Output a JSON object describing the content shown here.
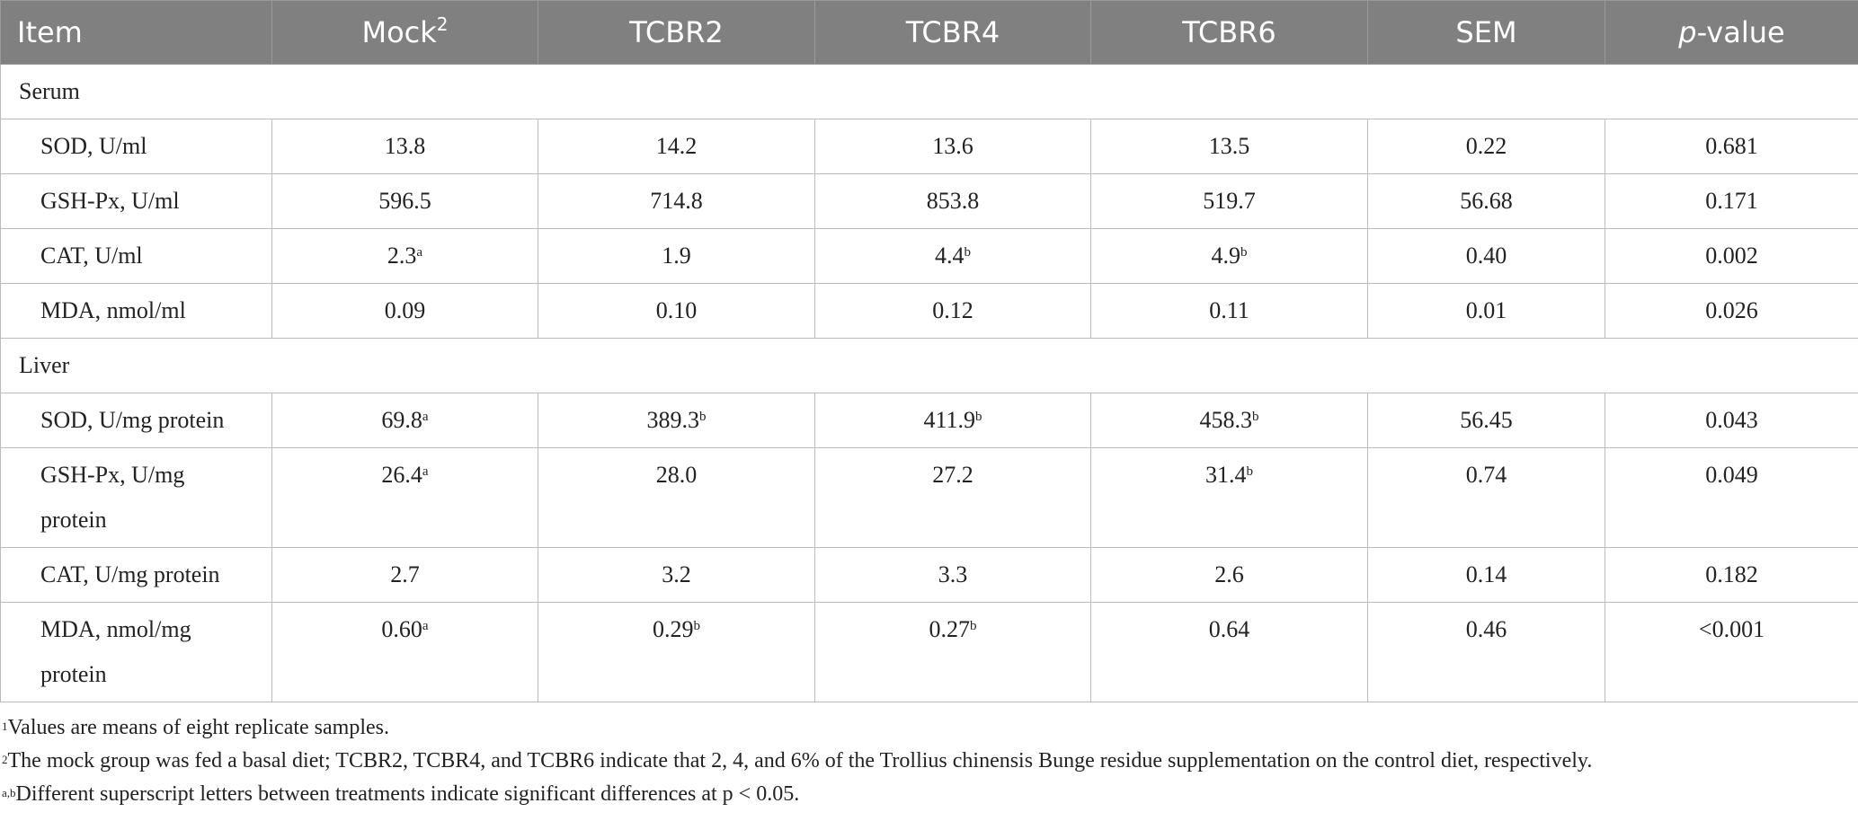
{
  "table": {
    "header": [
      {
        "text": "Item"
      },
      {
        "text": "Mock",
        "sup": "2"
      },
      {
        "text": "TCBR2"
      },
      {
        "text": "TCBR4"
      },
      {
        "text": "TCBR6"
      },
      {
        "text": "SEM"
      },
      {
        "italic": "p",
        "text": "-value"
      }
    ],
    "sections": [
      {
        "title": "Serum",
        "rows": [
          [
            {
              "text": "SOD, U/ml"
            },
            {
              "text": "13.8"
            },
            {
              "text": "14.2"
            },
            {
              "text": "13.6"
            },
            {
              "text": "13.5"
            },
            {
              "text": "0.22"
            },
            {
              "text": "0.681"
            }
          ],
          [
            {
              "text": "GSH-Px, U/ml"
            },
            {
              "text": "596.5"
            },
            {
              "text": "714.8"
            },
            {
              "text": "853.8"
            },
            {
              "text": "519.7"
            },
            {
              "text": "56.68"
            },
            {
              "text": "0.171"
            }
          ],
          [
            {
              "text": "CAT, U/ml"
            },
            {
              "text": "2.3",
              "sup": "a"
            },
            {
              "text": "1.9"
            },
            {
              "text": "4.4",
              "sup": "b"
            },
            {
              "text": "4.9",
              "sup": "b"
            },
            {
              "text": "0.40"
            },
            {
              "text": "0.002"
            }
          ],
          [
            {
              "text": "MDA, nmol/ml"
            },
            {
              "text": "0.09"
            },
            {
              "text": "0.10"
            },
            {
              "text": "0.12"
            },
            {
              "text": "0.11"
            },
            {
              "text": "0.01"
            },
            {
              "text": "0.026"
            }
          ]
        ]
      },
      {
        "title": "Liver",
        "rows": [
          [
            {
              "text": "SOD, U/mg protein"
            },
            {
              "text": "69.8",
              "sup": "a"
            },
            {
              "text": "389.3",
              "sup": "b"
            },
            {
              "text": "411.9",
              "sup": "b"
            },
            {
              "text": "458.3",
              "sup": "b"
            },
            {
              "text": "56.45"
            },
            {
              "text": "0.043"
            }
          ],
          [
            {
              "text": "GSH-Px, U/mg protein"
            },
            {
              "text": "26.4",
              "sup": "a"
            },
            {
              "text": "28.0"
            },
            {
              "text": "27.2"
            },
            {
              "text": "31.4",
              "sup": "b"
            },
            {
              "text": "0.74"
            },
            {
              "text": "0.049"
            }
          ],
          [
            {
              "text": "CAT, U/mg protein"
            },
            {
              "text": "2.7"
            },
            {
              "text": "3.2"
            },
            {
              "text": "3.3"
            },
            {
              "text": "2.6"
            },
            {
              "text": "0.14"
            },
            {
              "text": "0.182"
            }
          ],
          [
            {
              "text": "MDA, nmol/mg protein"
            },
            {
              "text": "0.60",
              "sup": "a"
            },
            {
              "text": "0.29",
              "sup": "b"
            },
            {
              "text": "0.27",
              "sup": "b"
            },
            {
              "text": "0.64"
            },
            {
              "text": "0.46"
            },
            {
              "text": "<0.001"
            }
          ]
        ]
      }
    ]
  },
  "footnotes": [
    {
      "sup": "1",
      "text": "Values are means of eight replicate samples."
    },
    {
      "sup": "2",
      "text": "The mock group was fed a basal diet; TCBR2, TCBR4, and TCBR6 indicate that 2, 4, and 6% of the Trollius chinensis Bunge residue supplementation on the control diet, respectively."
    },
    {
      "sup": "a,b",
      "text": "Different superscript letters between treatments indicate significant differences at p < 0.05."
    }
  ]
}
